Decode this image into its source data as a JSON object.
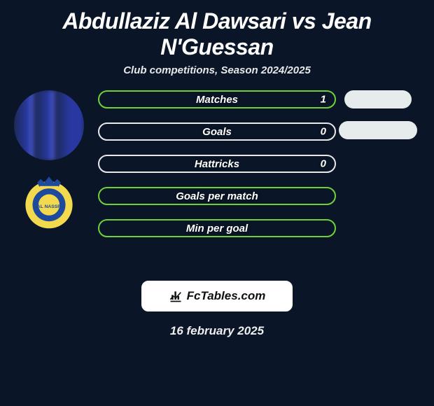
{
  "title": "Abdullaziz Al Dawsari vs Jean N'Guessan",
  "subtitle": "Club competitions, Season 2024/2025",
  "brand": "FcTables.com",
  "date_text": "16 february 2025",
  "colors": {
    "background": "#0a1628",
    "bar_border_green": "#6fd13a",
    "bar_border_white": "#e8e8e8",
    "pill_right_bg": "#e6ecec",
    "brand_bg": "#ffffff",
    "club_yellow": "#f2d94e",
    "club_blue": "#1e4a9e"
  },
  "bars": [
    {
      "label": "Matches",
      "value": "1",
      "border": "#6fd13a",
      "hasValue": true
    },
    {
      "label": "Goals",
      "value": "0",
      "border": "#e8e8e8",
      "hasValue": true
    },
    {
      "label": "Hattricks",
      "value": "0",
      "border": "#e8e8e8",
      "hasValue": true
    },
    {
      "label": "Goals per match",
      "value": "",
      "border": "#6fd13a",
      "hasValue": false
    },
    {
      "label": "Min per goal",
      "value": "",
      "border": "#6fd13a",
      "hasValue": false
    }
  ],
  "right_pills": [
    {
      "width": 96
    },
    {
      "width": 112
    }
  ]
}
